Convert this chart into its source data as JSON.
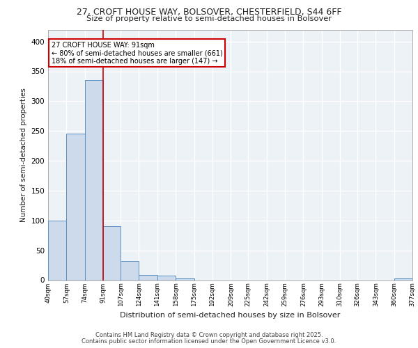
{
  "title1": "27, CROFT HOUSE WAY, BOLSOVER, CHESTERFIELD, S44 6FF",
  "title2": "Size of property relative to semi-detached houses in Bolsover",
  "xlabel": "Distribution of semi-detached houses by size in Bolsover",
  "ylabel": "Number of semi-detached properties",
  "bar_values": [
    100,
    246,
    336,
    91,
    32,
    9,
    8,
    3,
    0,
    0,
    0,
    0,
    0,
    0,
    0,
    0,
    0,
    0,
    0,
    3
  ],
  "bin_edges": [
    40,
    57,
    74,
    91,
    107,
    124,
    141,
    158,
    175,
    192,
    209,
    225,
    242,
    259,
    276,
    293,
    310,
    326,
    343,
    360,
    377
  ],
  "tick_labels": [
    "40sqm",
    "57sqm",
    "74sqm",
    "91sqm",
    "107sqm",
    "124sqm",
    "141sqm",
    "158sqm",
    "175sqm",
    "192sqm",
    "209sqm",
    "225sqm",
    "242sqm",
    "259sqm",
    "276sqm",
    "293sqm",
    "310sqm",
    "326sqm",
    "343sqm",
    "360sqm",
    "377sqm"
  ],
  "bar_color": "#cddaeb",
  "bar_edge_color": "#5b8fc0",
  "vline_x": 91,
  "vline_color": "#cc0000",
  "annotation_lines": [
    "27 CROFT HOUSE WAY: 91sqm",
    "← 80% of semi-detached houses are smaller (661)",
    "18% of semi-detached houses are larger (147) →"
  ],
  "annotation_box_color": "#cc0000",
  "ylim": [
    0,
    420
  ],
  "yticks": [
    0,
    50,
    100,
    150,
    200,
    250,
    300,
    350,
    400
  ],
  "footer1": "Contains HM Land Registry data © Crown copyright and database right 2025.",
  "footer2": "Contains public sector information licensed under the Open Government Licence v3.0.",
  "bg_color": "#edf2f7",
  "grid_color": "#ffffff"
}
